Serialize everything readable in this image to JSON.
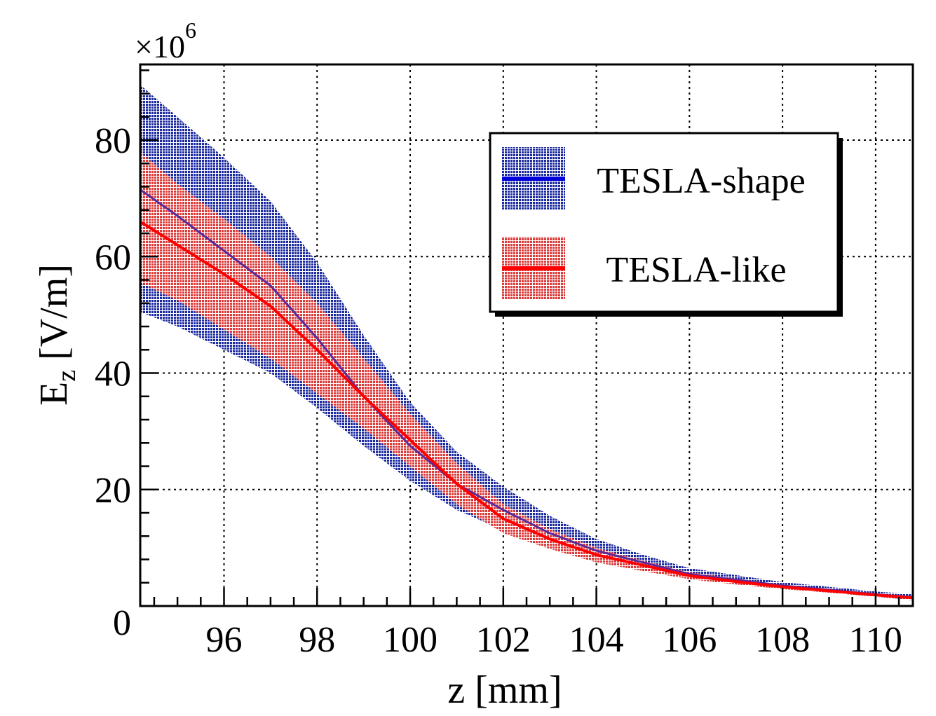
{
  "chart_data": {
    "type": "area",
    "title": "",
    "xlabel": "z [mm]",
    "ylabel_main": "E",
    "ylabel_sub": "z",
    "ylabel_unit": " [V/m]",
    "y_multiplier": "×10",
    "y_multiplier_exp": "6",
    "xlim": [
      94.2,
      110.8
    ],
    "ylim": [
      0,
      93
    ],
    "x_ticks": [
      96,
      98,
      100,
      102,
      104,
      106,
      108,
      110
    ],
    "x_tick_labels": [
      "96",
      "98",
      "100",
      "102",
      "104",
      "106",
      "108",
      "110"
    ],
    "y_ticks": [
      0,
      20,
      40,
      60,
      80
    ],
    "y_tick_labels": [
      "0",
      "20",
      "40",
      "60",
      "80"
    ],
    "grid": true,
    "legend_position": "top-right",
    "series": [
      {
        "name": "TESLA-shape",
        "color": "#0000dd",
        "band_color": "#1c2aa0",
        "x": [
          94.2,
          95,
          96,
          97,
          98,
          99,
          100,
          101,
          102,
          103,
          104,
          105,
          106,
          107,
          108,
          109,
          110,
          110.8
        ],
        "y": [
          71.5,
          67,
          61,
          55,
          46,
          36,
          27.5,
          21,
          16.5,
          12.5,
          9.5,
          7.5,
          5.5,
          4.5,
          3.5,
          2.8,
          2.0,
          1.5
        ],
        "lower": [
          50.5,
          48,
          44,
          40,
          34,
          27.5,
          21.5,
          16.5,
          13,
          10,
          7.8,
          6.2,
          4.7,
          3.8,
          3.0,
          2.3,
          1.6,
          1.0
        ],
        "upper": [
          89.5,
          84,
          77,
          69.5,
          59,
          46.5,
          35,
          26.5,
          20.5,
          15.5,
          11.5,
          8.8,
          6.5,
          5.3,
          4.1,
          3.3,
          2.5,
          2.0
        ]
      },
      {
        "name": "TESLA-like",
        "color": "#ff0000",
        "band_color": "#dd3a3a",
        "x": [
          94.2,
          95,
          96,
          97,
          98,
          99,
          100,
          101,
          102,
          103,
          104,
          105,
          106,
          107,
          108,
          109,
          110,
          110.8
        ],
        "y": [
          66,
          62,
          57,
          51.5,
          44,
          36,
          28.5,
          21,
          15,
          11.5,
          8.8,
          7.0,
          5.2,
          4.2,
          3.3,
          2.6,
          1.9,
          1.4
        ],
        "lower": [
          55.5,
          52.5,
          47.5,
          42.5,
          36.5,
          30.5,
          24,
          17.5,
          12.5,
          9.8,
          7.5,
          6.0,
          4.6,
          3.7,
          2.9,
          2.3,
          1.6,
          1.1
        ],
        "upper": [
          78,
          72.5,
          66.5,
          60,
          52,
          42.5,
          33,
          24.5,
          17.5,
          13.2,
          10,
          7.8,
          5.8,
          4.7,
          3.7,
          2.9,
          2.2,
          1.7
        ]
      }
    ]
  }
}
